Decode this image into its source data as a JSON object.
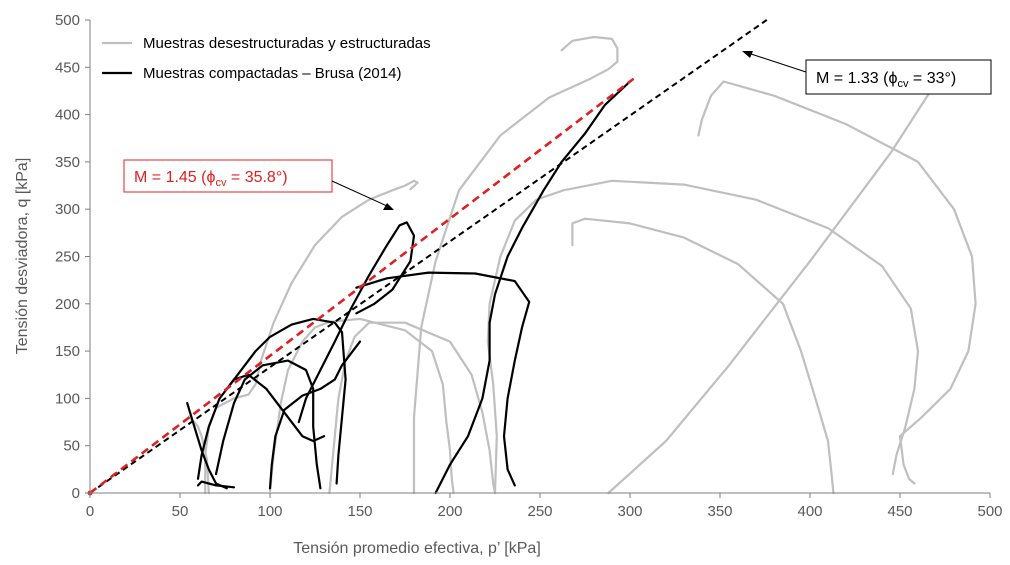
{
  "chart_data": {
    "type": "line",
    "title": "",
    "xlabel": "Tensión promedio efectiva, p’ [kPa]",
    "ylabel": "Tensión desviadora, q [kPa]",
    "xlim": [
      0,
      500
    ],
    "ylim": [
      0,
      500
    ],
    "x_ticks": [
      "0",
      "50",
      "100",
      "150",
      "200",
      "250",
      "300",
      "350",
      "400",
      "450",
      "500"
    ],
    "y_ticks": [
      "0",
      "50",
      "100",
      "150",
      "200",
      "250",
      "300",
      "350",
      "400",
      "450",
      "500"
    ],
    "grid": false,
    "legend_position": "top-left",
    "legend": [
      {
        "label": "Muestras desestructuradas y estructuradas",
        "color": "#bfbfbf"
      },
      {
        "label": "Muestras compactadas – Brusa (2014)",
        "color": "#000000"
      }
    ],
    "lines": [
      {
        "label_main": "M = 1.33 (",
        "label_phi": "ϕ",
        "label_sub": "cv",
        "label_end": " = 33°)",
        "slope": 1.33,
        "x_end": 376,
        "color": "#000000"
      },
      {
        "label_main": "M = 1.45 (",
        "label_phi": "ϕ",
        "label_sub": "cv",
        "label_end": " = 35.8°)",
        "slope": 1.45,
        "x_end": 302,
        "color": "#e02020"
      }
    ],
    "series": [
      {
        "group": "gray",
        "points": [
          [
            64,
            0
          ],
          [
            64,
            40
          ],
          [
            66,
            70
          ],
          [
            70,
            90
          ],
          [
            80,
            100
          ],
          [
            88,
            104
          ],
          [
            92,
            115
          ],
          [
            95,
            140
          ],
          [
            102,
            180
          ],
          [
            112,
            222
          ],
          [
            125,
            262
          ],
          [
            140,
            292
          ],
          [
            155,
            310
          ],
          [
            168,
            320
          ],
          [
            175,
            325
          ],
          [
            180,
            330
          ],
          [
            182,
            328
          ],
          [
            178,
            321
          ]
        ]
      },
      {
        "group": "gray",
        "points": [
          [
            100,
            2
          ],
          [
            102,
            40
          ],
          [
            106,
            95
          ],
          [
            110,
            130
          ],
          [
            118,
            160
          ],
          [
            125,
            175
          ],
          [
            133,
            181
          ],
          [
            150,
            184
          ],
          [
            175,
            172
          ],
          [
            190,
            150
          ],
          [
            196,
            115
          ],
          [
            198,
            75
          ],
          [
            200,
            45
          ],
          [
            201,
            15
          ],
          [
            202,
            0
          ]
        ]
      },
      {
        "group": "gray",
        "points": [
          [
            133,
            0
          ],
          [
            135,
            40
          ],
          [
            138,
            100
          ],
          [
            142,
            140
          ],
          [
            147,
            165
          ],
          [
            155,
            180
          ],
          [
            175,
            180
          ],
          [
            200,
            160
          ],
          [
            212,
            125
          ],
          [
            218,
            85
          ],
          [
            222,
            45
          ],
          [
            224,
            10
          ],
          [
            225,
            0
          ]
        ]
      },
      {
        "group": "gray",
        "points": [
          [
            180,
            0
          ],
          [
            180,
            80
          ],
          [
            184,
            175
          ],
          [
            192,
            245
          ],
          [
            205,
            320
          ],
          [
            228,
            378
          ],
          [
            255,
            418
          ],
          [
            278,
            438
          ],
          [
            288,
            448
          ],
          [
            293,
            456
          ],
          [
            293,
            470
          ],
          [
            290,
            480
          ],
          [
            280,
            482
          ],
          [
            268,
            478
          ],
          [
            262,
            468
          ]
        ]
      },
      {
        "group": "gray",
        "points": [
          [
            225,
            0
          ],
          [
            226,
            60
          ],
          [
            224,
            115
          ],
          [
            221,
            160
          ],
          [
            222,
            200
          ],
          [
            228,
            250
          ],
          [
            236,
            288
          ],
          [
            248,
            310
          ],
          [
            263,
            320
          ],
          [
            290,
            330
          ],
          [
            330,
            326
          ],
          [
            370,
            310
          ],
          [
            410,
            280
          ],
          [
            440,
            240
          ],
          [
            456,
            195
          ],
          [
            460,
            150
          ],
          [
            458,
            110
          ],
          [
            453,
            70
          ],
          [
            448,
            40
          ],
          [
            446,
            20
          ]
        ]
      },
      {
        "group": "gray",
        "points": [
          [
            268,
            262
          ],
          [
            268,
            285
          ],
          [
            275,
            290
          ],
          [
            300,
            285
          ],
          [
            330,
            270
          ],
          [
            360,
            242
          ],
          [
            385,
            200
          ],
          [
            395,
            150
          ],
          [
            403,
            100
          ],
          [
            410,
            55
          ],
          [
            412,
            20
          ],
          [
            413,
            0
          ]
        ]
      },
      {
        "group": "gray",
        "points": [
          [
            288,
            0
          ],
          [
            320,
            55
          ],
          [
            355,
            135
          ],
          [
            400,
            245
          ],
          [
            445,
            360
          ],
          [
            468,
            428
          ],
          [
            475,
            450
          ]
        ]
      },
      {
        "group": "gray",
        "points": [
          [
            338,
            378
          ],
          [
            340,
            395
          ],
          [
            345,
            420
          ],
          [
            352,
            435
          ],
          [
            380,
            420
          ],
          [
            420,
            390
          ],
          [
            460,
            350
          ],
          [
            480,
            300
          ],
          [
            490,
            250
          ],
          [
            492,
            200
          ],
          [
            488,
            150
          ],
          [
            478,
            110
          ],
          [
            462,
            80
          ],
          [
            450,
            60
          ],
          [
            452,
            30
          ],
          [
            455,
            15
          ],
          [
            458,
            10
          ]
        ]
      },
      {
        "group": "gray",
        "points": [
          [
            66,
            0
          ],
          [
            65,
            35
          ],
          [
            62,
            60
          ],
          [
            60,
            70
          ],
          [
            58,
            75
          ],
          [
            56,
            78
          ],
          [
            55,
            81
          ]
        ]
      },
      {
        "group": "black",
        "points": [
          [
            54,
            95
          ],
          [
            58,
            70
          ],
          [
            62,
            45
          ],
          [
            66,
            25
          ],
          [
            70,
            10
          ],
          [
            76,
            5
          ]
        ]
      },
      {
        "group": "black",
        "points": [
          [
            60,
            15
          ],
          [
            62,
            40
          ],
          [
            66,
            70
          ],
          [
            72,
            100
          ],
          [
            80,
            120
          ],
          [
            88,
            125
          ],
          [
            98,
            110
          ],
          [
            110,
            80
          ],
          [
            118,
            60
          ],
          [
            124,
            55
          ],
          [
            130,
            60
          ]
        ]
      },
      {
        "group": "black",
        "points": [
          [
            70,
            20
          ],
          [
            74,
            55
          ],
          [
            80,
            95
          ],
          [
            86,
            120
          ],
          [
            96,
            135
          ],
          [
            110,
            140
          ],
          [
            120,
            130
          ],
          [
            124,
            110
          ],
          [
            124,
            70
          ],
          [
            126,
            30
          ],
          [
            128,
            5
          ]
        ]
      },
      {
        "group": "black",
        "points": [
          [
            78,
            115
          ],
          [
            82,
            125
          ],
          [
            92,
            150
          ],
          [
            100,
            165
          ],
          [
            112,
            178
          ],
          [
            124,
            184
          ],
          [
            136,
            180
          ],
          [
            140,
            170
          ],
          [
            142,
            120
          ],
          [
            140,
            80
          ],
          [
            138,
            40
          ],
          [
            137,
            10
          ]
        ]
      },
      {
        "group": "black",
        "points": [
          [
            116,
            75
          ],
          [
            120,
            100
          ],
          [
            128,
            130
          ],
          [
            136,
            160
          ],
          [
            145,
            195
          ],
          [
            155,
            230
          ],
          [
            165,
            262
          ],
          [
            172,
            283
          ],
          [
            176,
            286
          ],
          [
            180,
            272
          ],
          [
            178,
            245
          ],
          [
            168,
            215
          ],
          [
            158,
            200
          ],
          [
            148,
            190
          ]
        ]
      },
      {
        "group": "black",
        "points": [
          [
            100,
            5
          ],
          [
            101,
            30
          ],
          [
            103,
            60
          ],
          [
            108,
            88
          ],
          [
            118,
            103
          ],
          [
            128,
            110
          ],
          [
            136,
            120
          ],
          [
            140,
            135
          ],
          [
            146,
            150
          ],
          [
            150,
            160
          ]
        ]
      },
      {
        "group": "black",
        "points": [
          [
            192,
            0
          ],
          [
            200,
            30
          ],
          [
            210,
            60
          ],
          [
            218,
            100
          ],
          [
            222,
            140
          ],
          [
            222,
            180
          ],
          [
            225,
            210
          ],
          [
            232,
            250
          ],
          [
            240,
            280
          ],
          [
            252,
            320
          ],
          [
            262,
            350
          ],
          [
            275,
            380
          ],
          [
            286,
            410
          ],
          [
            300,
            435
          ]
        ]
      },
      {
        "group": "black",
        "points": [
          [
            148,
            217
          ],
          [
            165,
            227
          ],
          [
            188,
            233
          ],
          [
            214,
            232
          ],
          [
            236,
            224
          ],
          [
            244,
            202
          ],
          [
            240,
            175
          ],
          [
            236,
            140
          ],
          [
            232,
            100
          ],
          [
            230,
            60
          ],
          [
            232,
            25
          ],
          [
            236,
            8
          ]
        ]
      },
      {
        "group": "black",
        "points": [
          [
            60,
            8
          ],
          [
            62,
            12
          ],
          [
            66,
            10
          ],
          [
            70,
            8
          ],
          [
            80,
            6
          ]
        ]
      }
    ]
  }
}
